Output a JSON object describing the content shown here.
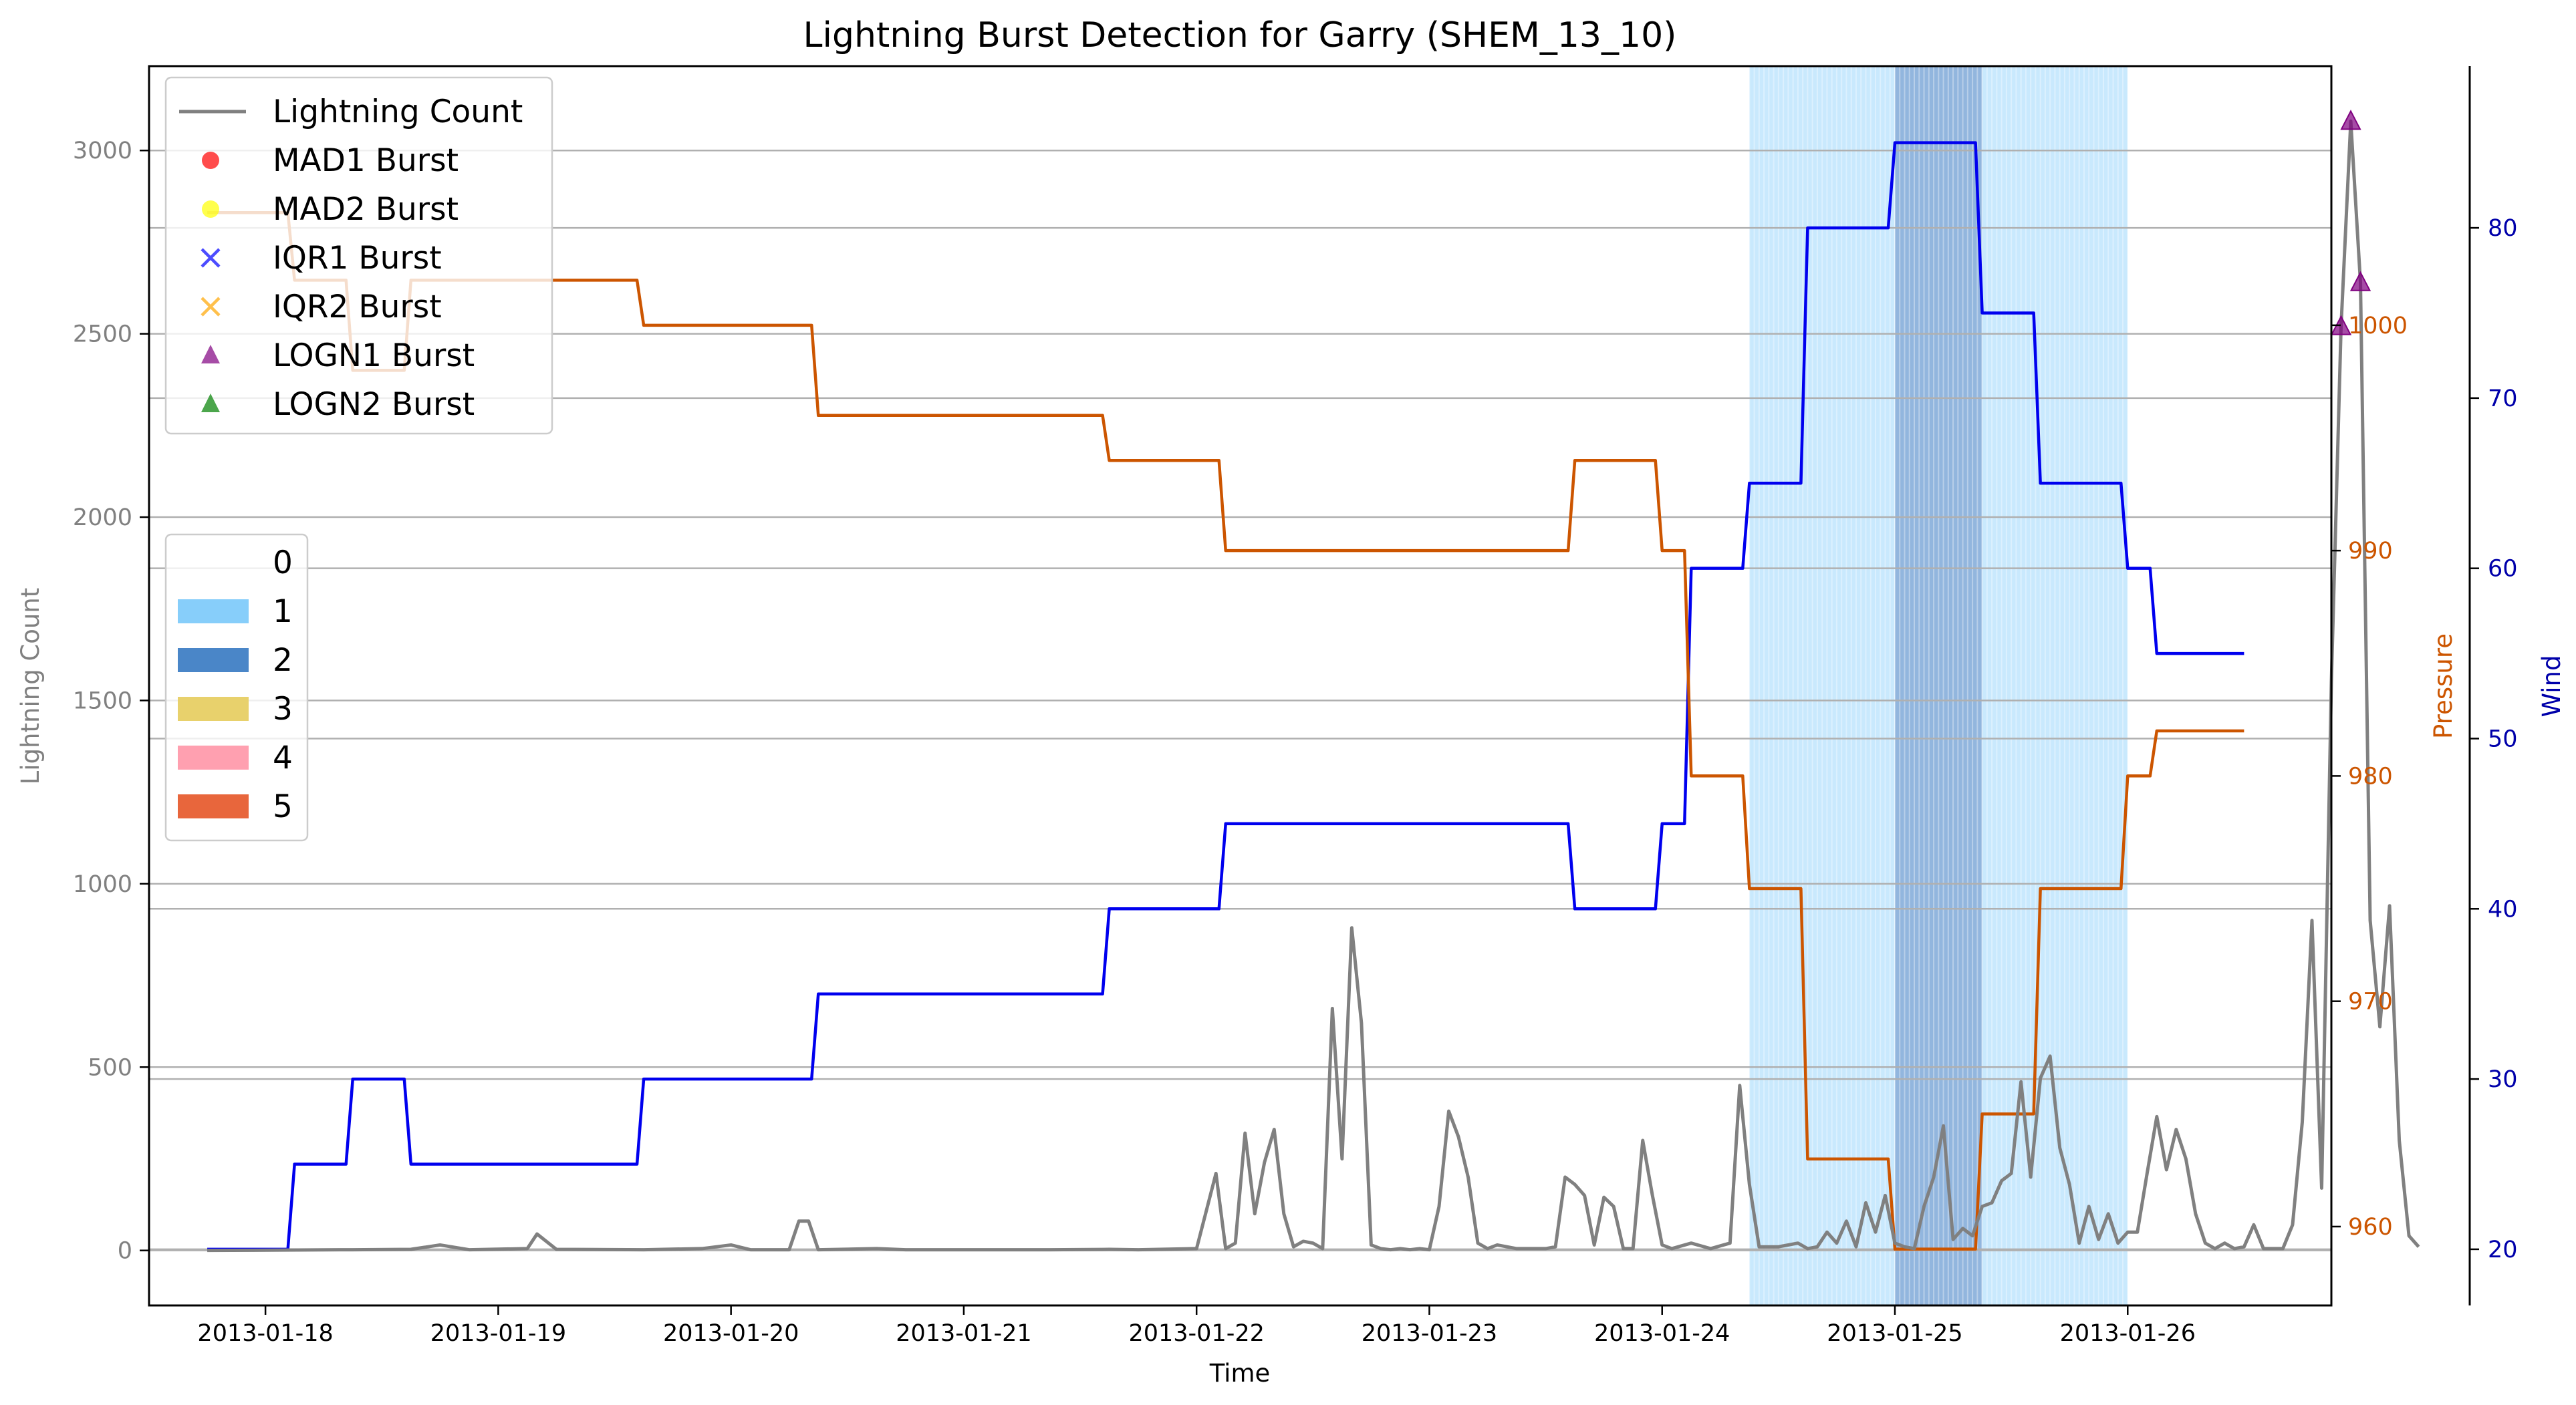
{
  "title": "Lightning Burst Detection for Garry (SHEM_13_10)",
  "chart_data": {
    "type": "line",
    "title": "Lightning Burst Detection for Garry (SHEM_13_10)",
    "xlabel": "Time",
    "ylabel_left": "Lightning Count",
    "ylabel_right_pressure": "Pressure",
    "ylabel_right_wind": "Wind",
    "x_ticks": [
      "2013-01-18",
      "2013-01-19",
      "2013-01-20",
      "2013-01-21",
      "2013-01-22",
      "2013-01-23",
      "2013-01-24",
      "2013-01-25",
      "2013-01-26"
    ],
    "x_range": [
      "2013-01-17T12:00",
      "2013-01-26T21:00"
    ],
    "ylim_left": [
      -150,
      3230
    ],
    "ylim_pressure": [
      956.5,
      1011.5
    ],
    "ylim_wind": [
      16.7,
      89.5
    ],
    "yticks_left": [
      0,
      500,
      1000,
      1500,
      2000,
      2500,
      3000
    ],
    "yticks_pressure": [
      960,
      970,
      980,
      990,
      1000
    ],
    "yticks_wind": [
      20,
      30,
      40,
      50,
      60,
      70,
      80
    ],
    "grid": "horizontal",
    "colors": {
      "lightning": "#808080",
      "pressure": "#cc5500",
      "wind": "#0000ee",
      "cat1": "#87cefa",
      "cat2": "#4a86c8",
      "cat3": "#e8d16c",
      "cat4": "#ffa0b0",
      "cat5": "#e8663c",
      "mad1": "#ff0000",
      "mad2": "#ffff00",
      "iqr1": "#0000ff",
      "iqr2": "#ffa500",
      "logn1": "#800080",
      "logn2": "#008000"
    },
    "series_legend": [
      {
        "label": "Lightning Count",
        "marker": "line",
        "color": "#808080"
      },
      {
        "label": "MAD1 Burst",
        "marker": "circle",
        "color": "#ff0000"
      },
      {
        "label": "MAD2 Burst",
        "marker": "circle",
        "color": "#ffff00"
      },
      {
        "label": "IQR1 Burst",
        "marker": "x",
        "color": "#0000ff"
      },
      {
        "label": "IQR2 Burst",
        "marker": "x",
        "color": "#ffa500"
      },
      {
        "label": "LOGN1 Burst",
        "marker": "triangle",
        "color": "#800080"
      },
      {
        "label": "LOGN2 Burst",
        "marker": "triangle",
        "color": "#008000"
      }
    ],
    "category_legend": [
      {
        "label": "0",
        "color": ""
      },
      {
        "label": "1",
        "color": "#87cefa"
      },
      {
        "label": "2",
        "color": "#4a86c8"
      },
      {
        "label": "3",
        "color": "#e8d16c"
      },
      {
        "label": "4",
        "color": "#ffa0b0"
      },
      {
        "label": "5",
        "color": "#e8663c"
      }
    ],
    "category_spans": [
      {
        "category": 1,
        "start": "2013-01-24T09:00",
        "end": "2013-01-25T00:00"
      },
      {
        "category": 2,
        "start": "2013-01-25T00:00",
        "end": "2013-01-25T09:00"
      },
      {
        "category": 1,
        "start": "2013-01-25T09:00",
        "end": "2013-01-26T00:00"
      }
    ],
    "wind_steps": [
      [
        "2013-01-17T18:00",
        20
      ],
      [
        "2013-01-18T03:00",
        25
      ],
      [
        "2013-01-18T09:00",
        30
      ],
      [
        "2013-01-18T15:00",
        25
      ],
      [
        "2013-01-19T15:00",
        30
      ],
      [
        "2013-01-20T09:00",
        35
      ],
      [
        "2013-01-21T15:00",
        40
      ],
      [
        "2013-01-22T03:00",
        45
      ],
      [
        "2013-01-23T15:00",
        40
      ],
      [
        "2013-01-24T00:00",
        45
      ],
      [
        "2013-01-24T03:00",
        60
      ],
      [
        "2013-01-24T09:00",
        65
      ],
      [
        "2013-01-24T15:00",
        80
      ],
      [
        "2013-01-25T00:00",
        85
      ],
      [
        "2013-01-25T09:00",
        75
      ],
      [
        "2013-01-25T15:00",
        65
      ],
      [
        "2013-01-26T00:00",
        60
      ],
      [
        "2013-01-26T03:00",
        55
      ],
      [
        "2013-01-26T12:00",
        55
      ]
    ],
    "pressure_steps": [
      [
        "2013-01-17T18:00",
        1005
      ],
      [
        "2013-01-18T03:00",
        1002
      ],
      [
        "2013-01-18T09:00",
        998
      ],
      [
        "2013-01-18T15:00",
        1002
      ],
      [
        "2013-01-19T15:00",
        1000
      ],
      [
        "2013-01-20T09:00",
        996
      ],
      [
        "2013-01-21T15:00",
        994
      ],
      [
        "2013-01-22T03:00",
        990
      ],
      [
        "2013-01-23T15:00",
        994
      ],
      [
        "2013-01-24T00:00",
        990
      ],
      [
        "2013-01-24T03:00",
        980
      ],
      [
        "2013-01-24T09:00",
        975
      ],
      [
        "2013-01-24T15:00",
        963
      ],
      [
        "2013-01-25T00:00",
        959
      ],
      [
        "2013-01-25T09:00",
        965
      ],
      [
        "2013-01-25T15:00",
        975
      ],
      [
        "2013-01-26T00:00",
        980
      ],
      [
        "2013-01-26T03:00",
        982
      ],
      [
        "2013-01-26T12:00",
        982
      ]
    ],
    "lightning": [
      [
        "2013-01-17T18:00",
        0
      ],
      [
        "2013-01-18T09:00",
        2
      ],
      [
        "2013-01-18T15:00",
        3
      ],
      [
        "2013-01-18T18:00",
        15
      ],
      [
        "2013-01-18T21:00",
        2
      ],
      [
        "2013-01-19T03:00",
        5
      ],
      [
        "2013-01-19T04:00",
        45
      ],
      [
        "2013-01-19T06:00",
        3
      ],
      [
        "2013-01-19T15:00",
        2
      ],
      [
        "2013-01-19T21:00",
        5
      ],
      [
        "2013-01-20T00:00",
        15
      ],
      [
        "2013-01-20T02:00",
        2
      ],
      [
        "2013-01-20T06:00",
        2
      ],
      [
        "2013-01-20T07:00",
        80
      ],
      [
        "2013-01-20T08:00",
        80
      ],
      [
        "2013-01-20T09:00",
        2
      ],
      [
        "2013-01-20T15:00",
        5
      ],
      [
        "2013-01-20T18:00",
        2
      ],
      [
        "2013-01-21T00:00",
        2
      ],
      [
        "2013-01-21T09:00",
        2
      ],
      [
        "2013-01-21T15:00",
        3
      ],
      [
        "2013-01-21T18:00",
        2
      ],
      [
        "2013-01-22T00:00",
        5
      ],
      [
        "2013-01-22T02:00",
        210
      ],
      [
        "2013-01-22T03:00",
        5
      ],
      [
        "2013-01-22T04:00",
        20
      ],
      [
        "2013-01-22T05:00",
        320
      ],
      [
        "2013-01-22T06:00",
        100
      ],
      [
        "2013-01-22T07:00",
        240
      ],
      [
        "2013-01-22T08:00",
        330
      ],
      [
        "2013-01-22T09:00",
        100
      ],
      [
        "2013-01-22T10:00",
        10
      ],
      [
        "2013-01-22T11:00",
        25
      ],
      [
        "2013-01-22T12:00",
        20
      ],
      [
        "2013-01-22T13:00",
        5
      ],
      [
        "2013-01-22T14:00",
        660
      ],
      [
        "2013-01-22T15:00",
        250
      ],
      [
        "2013-01-22T16:00",
        880
      ],
      [
        "2013-01-22T17:00",
        620
      ],
      [
        "2013-01-22T18:00",
        15
      ],
      [
        "2013-01-22T19:00",
        5
      ],
      [
        "2013-01-22T20:00",
        2
      ],
      [
        "2013-01-22T21:00",
        5
      ],
      [
        "2013-01-22T22:00",
        2
      ],
      [
        "2013-01-22T23:00",
        5
      ],
      [
        "2013-01-23T00:00",
        2
      ],
      [
        "2013-01-23T01:00",
        120
      ],
      [
        "2013-01-23T02:00",
        380
      ],
      [
        "2013-01-23T03:00",
        310
      ],
      [
        "2013-01-23T04:00",
        200
      ],
      [
        "2013-01-23T05:00",
        20
      ],
      [
        "2013-01-23T06:00",
        5
      ],
      [
        "2013-01-23T07:00",
        15
      ],
      [
        "2013-01-23T09:00",
        5
      ],
      [
        "2013-01-23T12:00",
        5
      ],
      [
        "2013-01-23T13:00",
        10
      ],
      [
        "2013-01-23T14:00",
        200
      ],
      [
        "2013-01-23T15:00",
        180
      ],
      [
        "2013-01-23T16:00",
        150
      ],
      [
        "2013-01-23T17:00",
        15
      ],
      [
        "2013-01-23T18:00",
        145
      ],
      [
        "2013-01-23T19:00",
        120
      ],
      [
        "2013-01-23T20:00",
        5
      ],
      [
        "2013-01-23T21:00",
        5
      ],
      [
        "2013-01-23T22:00",
        300
      ],
      [
        "2013-01-23T23:00",
        150
      ],
      [
        "2013-01-24T00:00",
        15
      ],
      [
        "2013-01-24T01:00",
        5
      ],
      [
        "2013-01-24T03:00",
        20
      ],
      [
        "2013-01-24T05:00",
        5
      ],
      [
        "2013-01-24T07:00",
        20
      ],
      [
        "2013-01-24T08:00",
        450
      ],
      [
        "2013-01-24T09:00",
        180
      ],
      [
        "2013-01-24T10:00",
        10
      ],
      [
        "2013-01-24T12:00",
        10
      ],
      [
        "2013-01-24T14:00",
        20
      ],
      [
        "2013-01-24T15:00",
        5
      ],
      [
        "2013-01-24T16:00",
        10
      ],
      [
        "2013-01-24T17:00",
        50
      ],
      [
        "2013-01-24T18:00",
        20
      ],
      [
        "2013-01-24T19:00",
        80
      ],
      [
        "2013-01-24T20:00",
        10
      ],
      [
        "2013-01-24T21:00",
        130
      ],
      [
        "2013-01-24T22:00",
        50
      ],
      [
        "2013-01-24T23:00",
        150
      ],
      [
        "2013-01-25T00:00",
        20
      ],
      [
        "2013-01-25T01:00",
        10
      ],
      [
        "2013-01-25T02:00",
        5
      ],
      [
        "2013-01-25T03:00",
        120
      ],
      [
        "2013-01-25T04:00",
        200
      ],
      [
        "2013-01-25T05:00",
        340
      ],
      [
        "2013-01-25T06:00",
        30
      ],
      [
        "2013-01-25T07:00",
        60
      ],
      [
        "2013-01-25T08:00",
        40
      ],
      [
        "2013-01-25T09:00",
        120
      ],
      [
        "2013-01-25T10:00",
        130
      ],
      [
        "2013-01-25T11:00",
        190
      ],
      [
        "2013-01-25T12:00",
        210
      ],
      [
        "2013-01-25T13:00",
        460
      ],
      [
        "2013-01-25T14:00",
        200
      ],
      [
        "2013-01-25T15:00",
        470
      ],
      [
        "2013-01-25T16:00",
        530
      ],
      [
        "2013-01-25T17:00",
        280
      ],
      [
        "2013-01-25T18:00",
        180
      ],
      [
        "2013-01-25T19:00",
        20
      ],
      [
        "2013-01-25T20:00",
        120
      ],
      [
        "2013-01-25T21:00",
        30
      ],
      [
        "2013-01-25T22:00",
        100
      ],
      [
        "2013-01-25T23:00",
        20
      ],
      [
        "2013-01-26T00:00",
        50
      ],
      [
        "2013-01-26T01:00",
        50
      ],
      [
        "2013-01-26T02:00",
        210
      ],
      [
        "2013-01-26T03:00",
        365
      ],
      [
        "2013-01-26T04:00",
        220
      ],
      [
        "2013-01-26T05:00",
        330
      ],
      [
        "2013-01-26T06:00",
        250
      ],
      [
        "2013-01-26T07:00",
        100
      ],
      [
        "2013-01-26T08:00",
        20
      ],
      [
        "2013-01-26T09:00",
        5
      ],
      [
        "2013-01-26T10:00",
        20
      ],
      [
        "2013-01-26T11:00",
        5
      ],
      [
        "2013-01-26T12:00",
        10
      ],
      [
        "2013-01-26T13:00",
        70
      ],
      [
        "2013-01-26T14:00",
        5
      ],
      [
        "2013-01-26T15:00",
        5
      ],
      [
        "2013-01-26T16:00",
        5
      ],
      [
        "2013-01-26T17:00",
        70
      ],
      [
        "2013-01-26T18:00",
        350
      ],
      [
        "2013-01-26T19:00",
        900
      ],
      [
        "2013-01-26T20:00",
        170
      ],
      [
        "2013-01-26T21:00",
        1550
      ],
      [
        "2013-01-26T22:00",
        2520
      ],
      [
        "2013-01-26T23:00",
        3080
      ],
      [
        "2013-01-27T00:00",
        2640
      ],
      [
        "2013-01-27T01:00",
        900
      ],
      [
        "2013-01-27T02:00",
        610
      ],
      [
        "2013-01-27T03:00",
        940
      ],
      [
        "2013-01-27T04:00",
        300
      ],
      [
        "2013-01-27T05:00",
        40
      ],
      [
        "2013-01-27T06:00",
        10
      ]
    ],
    "logn1_bursts": [
      [
        "2013-01-26T22:00",
        2520
      ],
      [
        "2013-01-26T23:00",
        3080
      ],
      [
        "2013-01-27T00:00",
        2640
      ]
    ]
  }
}
